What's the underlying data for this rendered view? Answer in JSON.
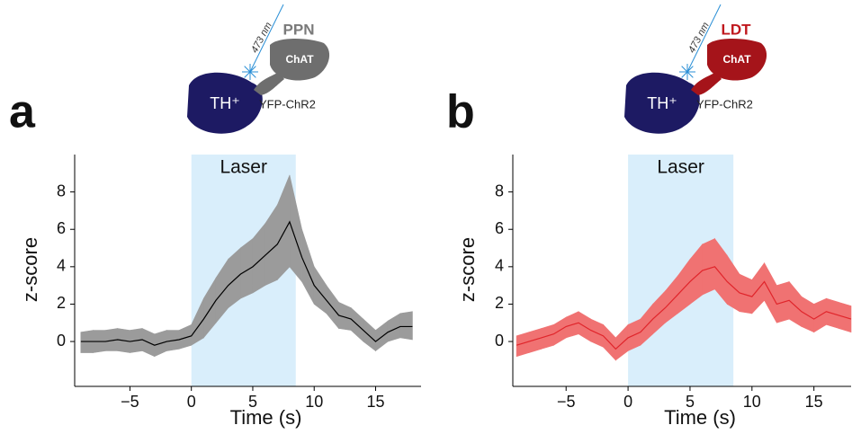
{
  "chart_data": [
    {
      "type": "line",
      "panel": "a",
      "diagram": {
        "wavelength": "473 nm",
        "region": "PPN",
        "neuron": "ChAT",
        "target": "TH⁺",
        "construct": "YFP-ChR2",
        "region_color": "#7a7a7a",
        "neuron_color": "#6e6e6e"
      },
      "laser": {
        "label": "Laser",
        "range": [
          0,
          8.5
        ],
        "color": "#d9eefb"
      },
      "xlabel": "Time (s)",
      "ylabel": "z-score",
      "x": [
        -9,
        -8,
        -7,
        -6,
        -5,
        -4,
        -3,
        -2,
        -1,
        0,
        1,
        2,
        3,
        4,
        5,
        6,
        7,
        8,
        9,
        10,
        11,
        12,
        13,
        14,
        15,
        16,
        17,
        18
      ],
      "values": [
        0,
        0,
        0,
        0.1,
        0,
        0.1,
        -0.2,
        0,
        0.1,
        0.3,
        1.2,
        2.2,
        3,
        3.6,
        4,
        4.6,
        5.2,
        6.4,
        4.5,
        3,
        2.2,
        1.4,
        1.2,
        0.6,
        0,
        0.5,
        0.8,
        0.8
      ],
      "lower": [
        -0.6,
        -0.6,
        -0.5,
        -0.5,
        -0.6,
        -0.5,
        -0.8,
        -0.5,
        -0.4,
        -0.2,
        0.2,
        1,
        1.8,
        2.3,
        2.6,
        3,
        3.3,
        4,
        3.2,
        2,
        1.5,
        0.7,
        0.6,
        0,
        -0.5,
        0,
        0.2,
        0.1
      ],
      "upper": [
        0.5,
        0.6,
        0.6,
        0.7,
        0.6,
        0.7,
        0.4,
        0.6,
        0.6,
        0.9,
        2.3,
        3.4,
        4.4,
        5,
        5.5,
        6.3,
        7.3,
        8.9,
        6,
        4,
        3,
        2.1,
        1.8,
        1.2,
        0.6,
        1.1,
        1.5,
        1.6
      ],
      "color": "#000000",
      "band_color": "#9b9b9b",
      "xlim": [
        -9.5,
        18.7
      ],
      "ylim": [
        -2.4,
        10
      ],
      "xticks": [
        {
          "value": -5,
          "label": "−5"
        },
        0,
        5,
        10,
        15
      ],
      "yticks": [
        0,
        2,
        4,
        6,
        8
      ]
    },
    {
      "type": "line",
      "panel": "b",
      "diagram": {
        "wavelength": "473 nm",
        "region": "LDT",
        "neuron": "ChAT",
        "target": "TH⁺",
        "construct": "YFP-ChR2",
        "region_color": "#c0181e",
        "neuron_color": "#a5141a"
      },
      "laser": {
        "label": "Laser",
        "range": [
          0,
          8.5
        ],
        "color": "#d9eefb"
      },
      "xlabel": "Time (s)",
      "ylabel": "z-score",
      "x": [
        -9,
        -8,
        -7,
        -6,
        -5,
        -4,
        -3,
        -2,
        -1,
        0,
        1,
        2,
        3,
        4,
        5,
        6,
        7,
        8,
        9,
        10,
        11,
        12,
        13,
        14,
        15,
        16,
        17,
        18
      ],
      "values": [
        -0.2,
        0,
        0.2,
        0.4,
        0.8,
        1,
        0.6,
        0.3,
        -0.4,
        0.2,
        0.5,
        1.2,
        1.8,
        2.5,
        3.2,
        3.8,
        4,
        3.2,
        2.6,
        2.4,
        3.2,
        2,
        2.2,
        1.6,
        1.2,
        1.6,
        1.4,
        1.2
      ],
      "lower": [
        -0.8,
        -0.6,
        -0.4,
        -0.2,
        0.2,
        0.4,
        0,
        -0.3,
        -1,
        -0.5,
        -0.2,
        0.4,
        1,
        1.5,
        2,
        2.5,
        2.8,
        2,
        1.6,
        1.5,
        2.2,
        1,
        1.2,
        0.8,
        0.5,
        0.9,
        0.7,
        0.5
      ],
      "upper": [
        0.3,
        0.5,
        0.7,
        0.9,
        1.3,
        1.6,
        1.2,
        0.9,
        0.2,
        0.9,
        1.2,
        2,
        2.7,
        3.5,
        4.4,
        5.2,
        5.5,
        4.6,
        3.6,
        3.3,
        4.2,
        3,
        3.2,
        2.4,
        2,
        2.3,
        2.1,
        1.9
      ],
      "color": "#e0252b",
      "band_color": "#f07272",
      "xlim": [
        -9.3,
        18
      ],
      "ylim": [
        -2.4,
        10
      ],
      "xticks": [
        {
          "value": -5,
          "label": "−5"
        },
        0,
        5,
        10,
        15
      ],
      "yticks": [
        0,
        2,
        4,
        6,
        8
      ]
    }
  ]
}
